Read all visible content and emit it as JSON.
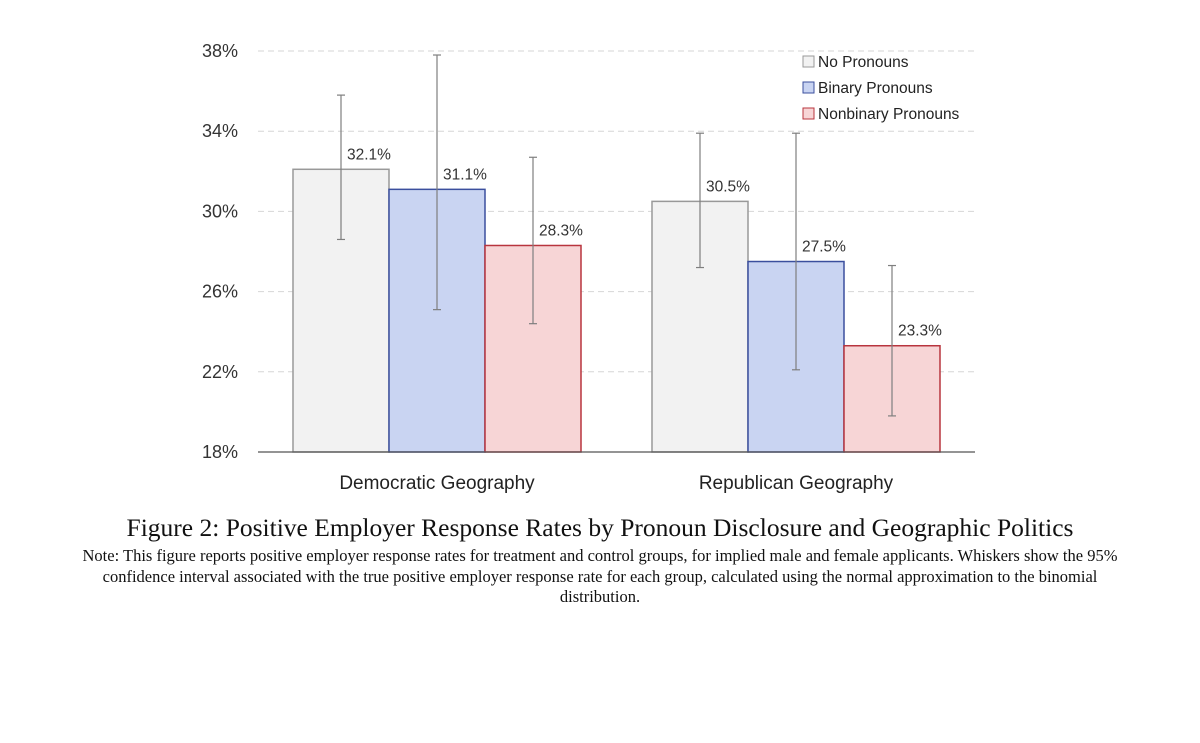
{
  "chart_data": {
    "type": "bar",
    "categories": [
      "Democratic Geography",
      "Republican Geography"
    ],
    "series": [
      {
        "name": "No Pronouns",
        "color": "#f2f2f2",
        "edge": "#999999",
        "values": [
          32.1,
          30.5
        ],
        "ci_low": [
          28.6,
          27.2
        ],
        "ci_high": [
          35.8,
          33.9
        ],
        "labels": [
          "32.1%",
          "30.5%"
        ]
      },
      {
        "name": "Binary Pronouns",
        "color": "#c9d4f2",
        "edge": "#3b4f9e",
        "values": [
          31.1,
          27.5
        ],
        "ci_low": [
          25.1,
          22.1
        ],
        "ci_high": [
          37.8,
          33.9
        ],
        "labels": [
          "31.1%",
          "27.5%"
        ]
      },
      {
        "name": "Nonbinary Pronouns",
        "color": "#f7d5d6",
        "edge": "#b8353e",
        "values": [
          28.3,
          23.3
        ],
        "ci_low": [
          24.4,
          19.8
        ],
        "ci_high": [
          32.7,
          27.3
        ],
        "labels": [
          "28.3%",
          "23.3%"
        ]
      }
    ],
    "ylim": [
      18,
      38
    ],
    "yticks": [
      18,
      22,
      26,
      30,
      34,
      38
    ],
    "ytick_labels": [
      "18%",
      "22%",
      "26%",
      "30%",
      "34%",
      "38%"
    ],
    "grid": "dashed horizontal",
    "legend_position": "top-right",
    "xlabel": "",
    "ylabel": ""
  },
  "caption": {
    "title": "Figure 2: Positive Employer Response Rates by Pronoun Disclosure and Geographic Politics",
    "note": "Note: This figure reports positive employer response rates for treatment and control groups, for implied male and female applicants. Whiskers show the 95% confidence interval associated with the true positive employer response rate for each group, calculated using the normal approximation to the binomial distribution."
  }
}
